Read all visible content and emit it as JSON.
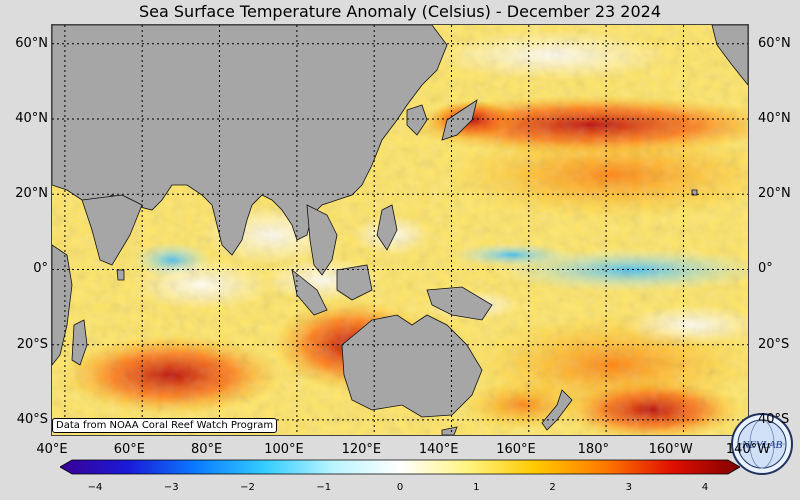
{
  "title": "Sea Surface Temperature Anomaly (Celsius) - December 23 2024",
  "attribution": "Data from NOAA Coral Reef Watch Program",
  "latitude_labels": [
    "60°N",
    "40°N",
    "20°N",
    "0°",
    "20°S",
    "40°S"
  ],
  "latitude_values": [
    60,
    40,
    20,
    0,
    -20,
    -40
  ],
  "longitude_labels": [
    "40°E",
    "60°E",
    "80°E",
    "100°E",
    "120°E",
    "140°E",
    "160°E",
    "180°",
    "160°W",
    "140°W"
  ],
  "longitude_values": [
    40,
    60,
    80,
    100,
    120,
    140,
    160,
    180,
    200,
    220
  ],
  "map_extent": {
    "lon_min": 40,
    "lon_max": 220,
    "lat_min": -44,
    "lat_max": 65
  },
  "colorbar": {
    "min": -4,
    "max": 4,
    "tick_labels": [
      "−4",
      "−3",
      "−2",
      "−1",
      "0",
      "1",
      "2",
      "3",
      "4"
    ],
    "tick_values": [
      -4,
      -3,
      -2,
      -1,
      0,
      1,
      2,
      3,
      4
    ],
    "colors": [
      "#3a0094",
      "#1a1ad8",
      "#0a7bff",
      "#33ccff",
      "#b8f4ff",
      "#ffffff",
      "#fff480",
      "#ffc800",
      "#ff7a00",
      "#e01000",
      "#800000"
    ]
  },
  "logo": {
    "text": "NEVLAB",
    "icon": "nevlab-globe-logo"
  },
  "colors": {
    "land": "#a6a6a6",
    "ocean_base": "#ffef80",
    "warm_strong": "#c40000",
    "cool": "#7fd8ff"
  }
}
